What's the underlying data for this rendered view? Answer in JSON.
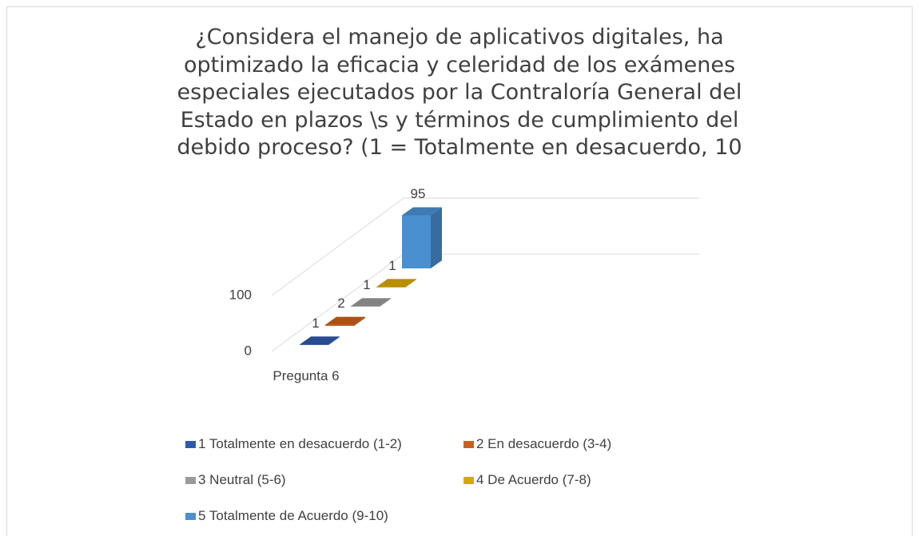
{
  "chart_data": {
    "type": "bar3d",
    "title_lines": [
      "¿Considera el manejo de aplicativos digitales, ha",
      "optimizado la eficacia y celeridad de los exámenes",
      "especiales ejecutados por la Contraloría General del",
      "Estado en plazos \\s y términos de cumplimiento del",
      "debido proceso? (1 = Totalmente en desacuerdo, 10"
    ],
    "categories": [
      "Pregunta 6"
    ],
    "series": [
      {
        "name": "1 Totalmente en desacuerdo (1-2)",
        "color": "#2e5aa8",
        "values": [
          1
        ]
      },
      {
        "name": "2 En desacuerdo (3-4)",
        "color": "#c8611f",
        "values": [
          2
        ]
      },
      {
        "name": "3 Neutral (5-6)",
        "color": "#9a9a9a",
        "values": [
          1
        ]
      },
      {
        "name": "4 De Acuerdo (7-8)",
        "color": "#d9a800",
        "values": [
          1
        ]
      },
      {
        "name": "5 Totalmente de Acuerdo (9-10)",
        "color": "#4a90d0",
        "values": [
          95
        ]
      }
    ],
    "ylim": [
      0,
      100
    ],
    "yticks": [
      0,
      100
    ],
    "grid": true,
    "legend": "bottom"
  }
}
